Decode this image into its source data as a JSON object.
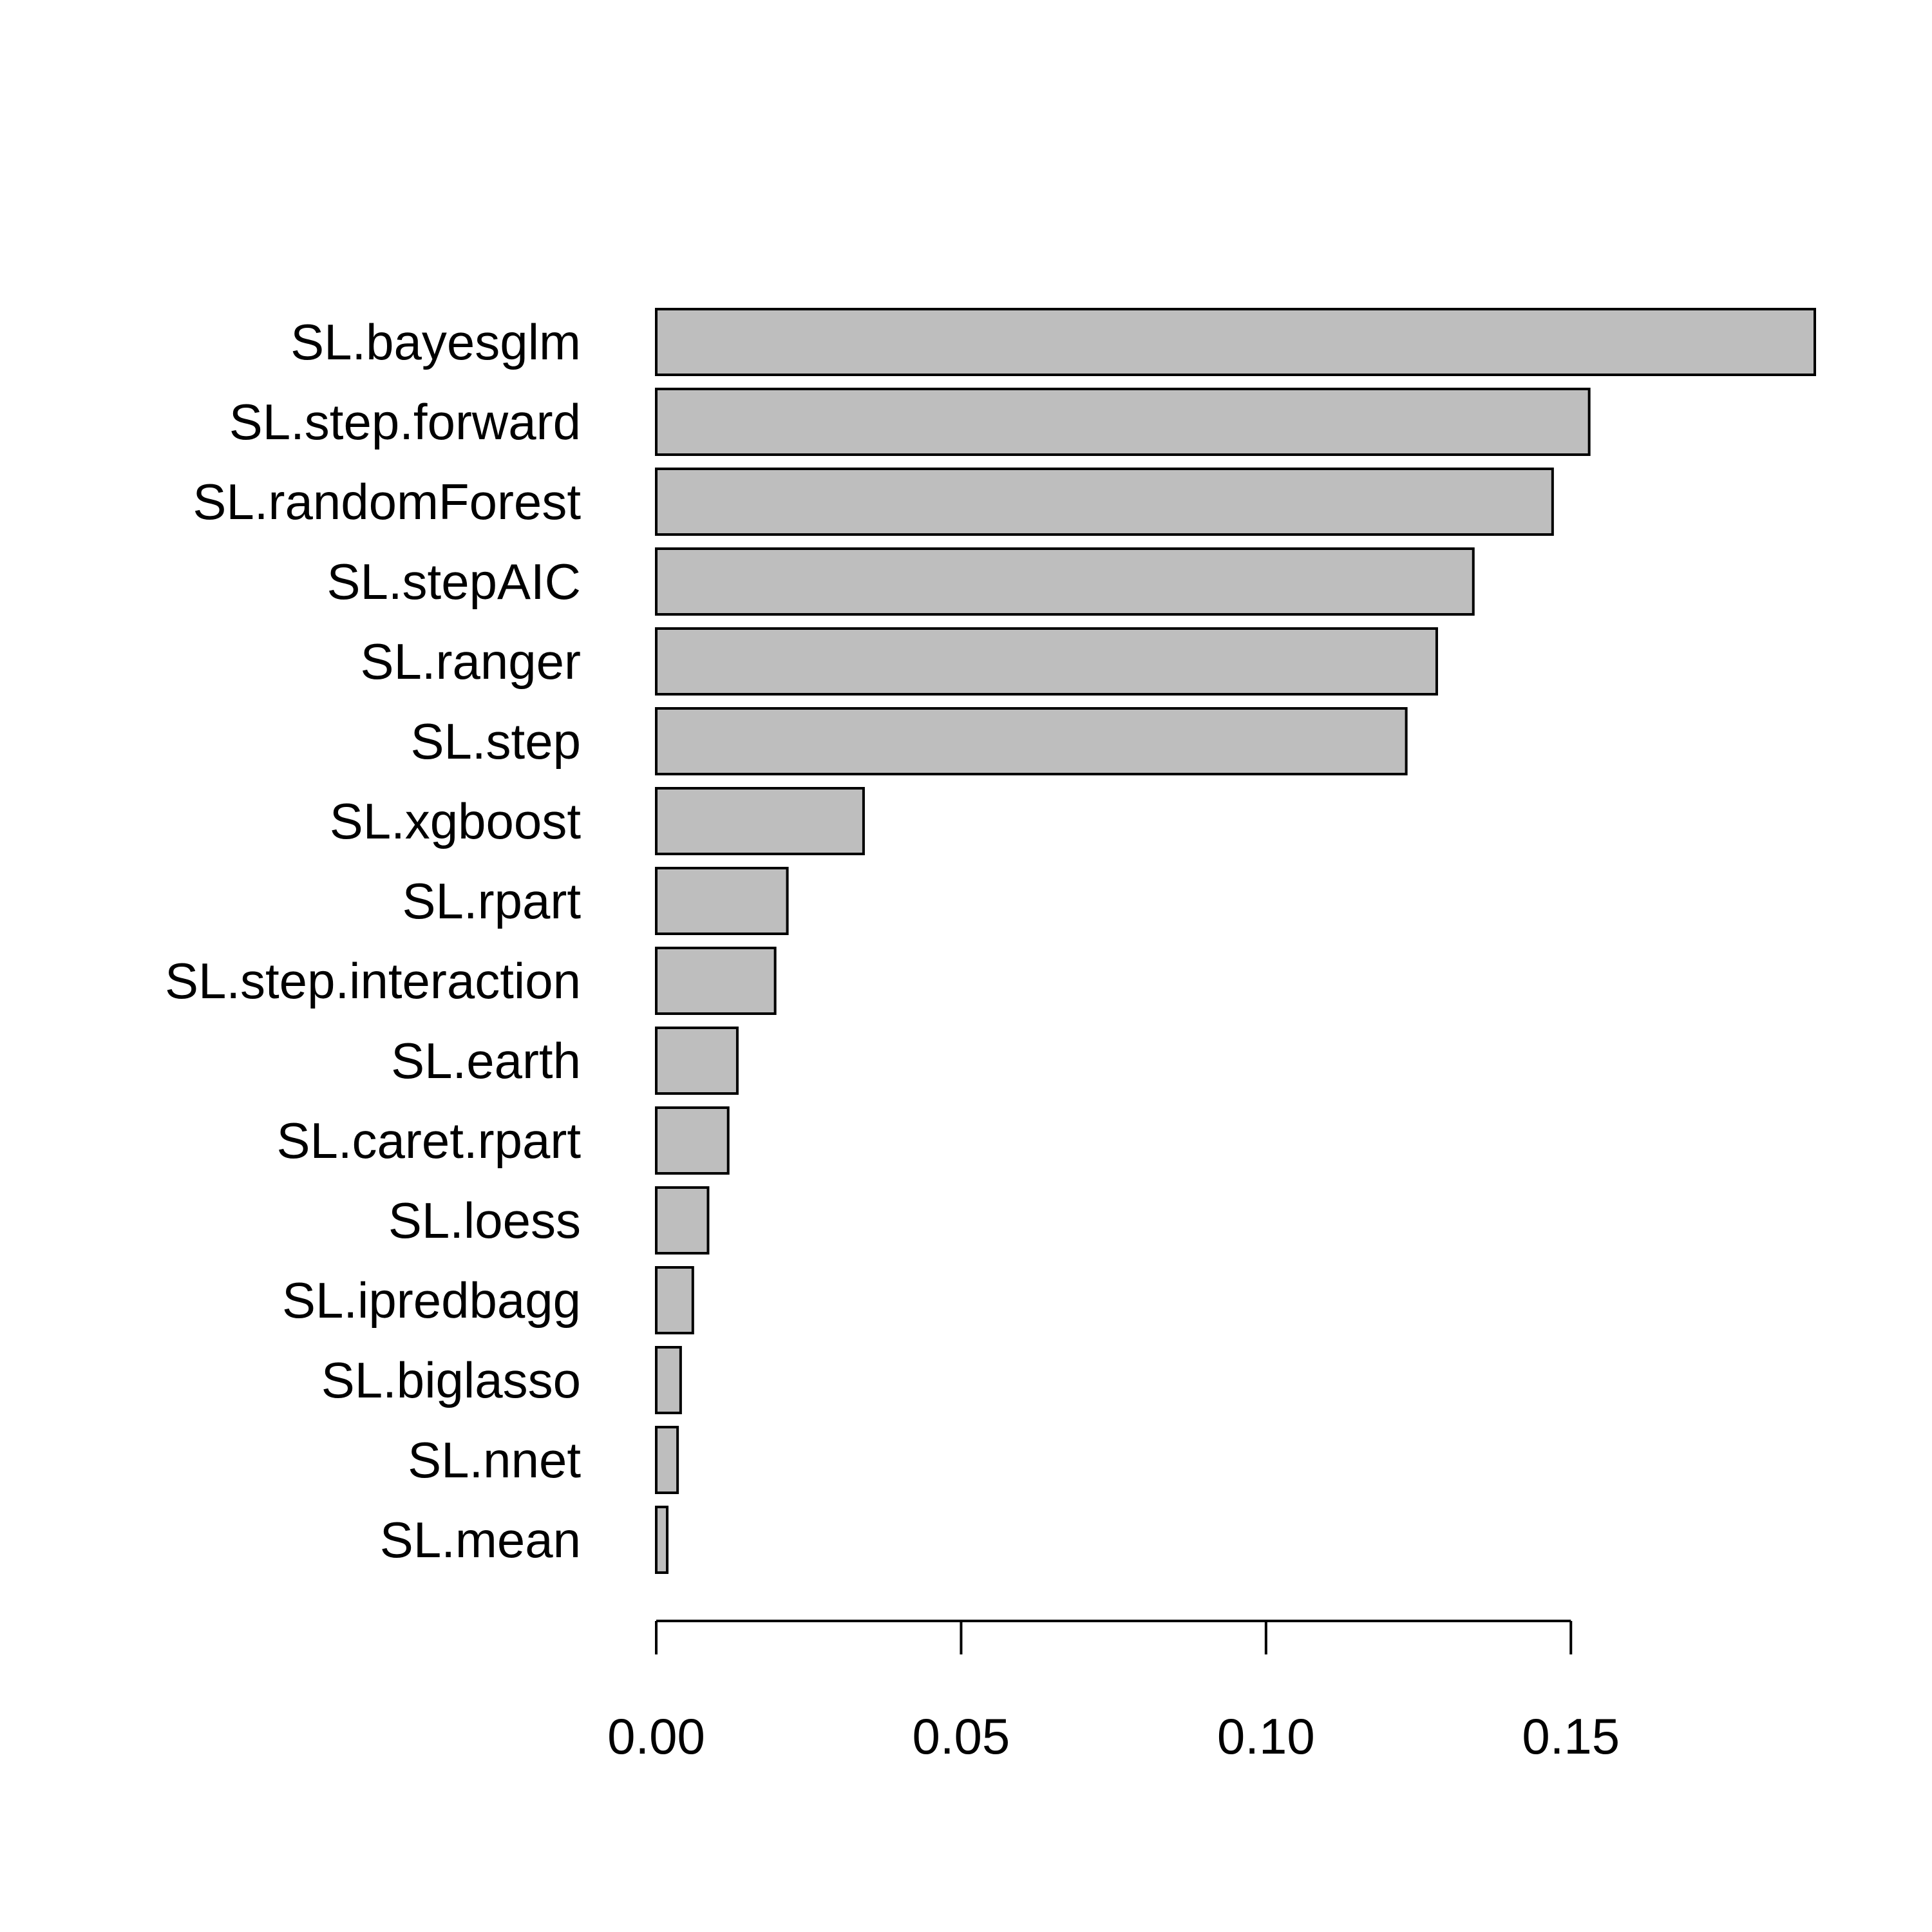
{
  "chart_data": {
    "type": "bar",
    "orientation": "horizontal",
    "categories": [
      "SL.bayesglm",
      "SL.step.forward",
      "SL.randomForest",
      "SL.stepAIC",
      "SL.ranger",
      "SL.step",
      "SL.xgboost",
      "SL.rpart",
      "SL.step.interaction",
      "SL.earth",
      "SL.caret.rpart",
      "SL.loess",
      "SL.ipredbagg",
      "SL.biglasso",
      "SL.nnet",
      "SL.mean"
    ],
    "values": [
      0.19,
      0.153,
      0.147,
      0.134,
      0.128,
      0.123,
      0.034,
      0.0215,
      0.0195,
      0.0133,
      0.0118,
      0.0085,
      0.006,
      0.004,
      0.0035,
      0.0018
    ],
    "xticks": [
      "0.00",
      "0.05",
      "0.10",
      "0.15"
    ],
    "xtick_values": [
      0,
      0.05,
      0.1,
      0.15
    ],
    "xlim": [
      0,
      0.19
    ],
    "title": "",
    "xlabel": "",
    "ylabel": "",
    "grid": false,
    "bar_color": "#bebebe",
    "bar_edge_color": "#000000"
  }
}
